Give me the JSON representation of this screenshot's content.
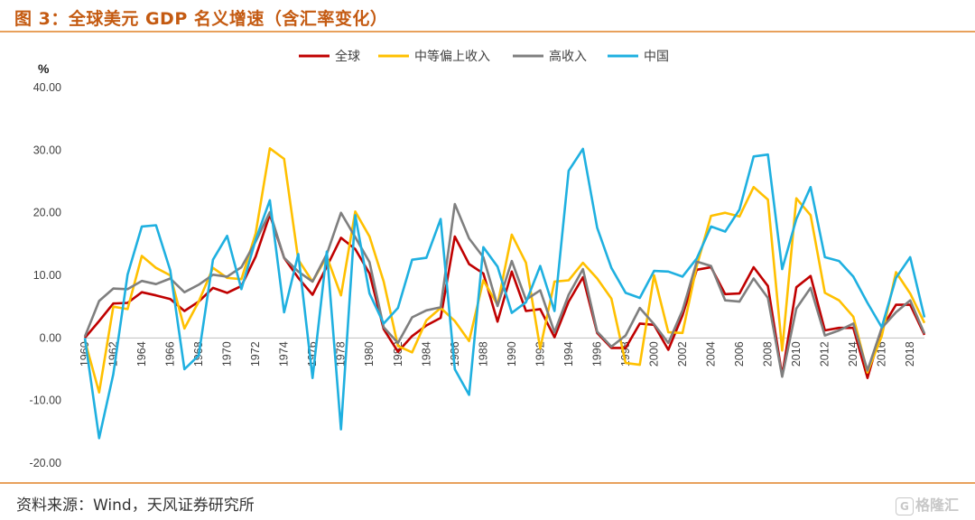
{
  "header": {
    "title": "图 3：全球美元 GDP 名义增速（含汇率变化）"
  },
  "footer": {
    "source": "资料来源：Wind，天风证券研究所",
    "watermark": "格隆汇",
    "watermark_mark": "G"
  },
  "chart_data": {
    "type": "line",
    "title": "",
    "ylabel": "%",
    "xlabel": "",
    "ylim": [
      -20,
      40
    ],
    "yticks": [
      "40.00",
      "30.00",
      "20.00",
      "10.00",
      "0.00",
      "-10.00",
      "-20.00"
    ],
    "ytick_values": [
      40,
      30,
      20,
      10,
      0,
      -10,
      -20
    ],
    "x": [
      1960,
      1961,
      1962,
      1963,
      1964,
      1965,
      1966,
      1967,
      1968,
      1969,
      1970,
      1971,
      1972,
      1973,
      1974,
      1975,
      1976,
      1977,
      1978,
      1979,
      1980,
      1981,
      1982,
      1983,
      1984,
      1985,
      1986,
      1987,
      1988,
      1989,
      1990,
      1991,
      1992,
      1993,
      1994,
      1995,
      1996,
      1997,
      1998,
      1999,
      2000,
      2001,
      2002,
      2003,
      2004,
      2005,
      2006,
      2007,
      2008,
      2009,
      2010,
      2011,
      2012,
      2013,
      2014,
      2015,
      2016,
      2017,
      2018,
      2019
    ],
    "xticks": [
      "1960",
      "1962",
      "1964",
      "1966",
      "1968",
      "1970",
      "1972",
      "1974",
      "1976",
      "1978",
      "1980",
      "1982",
      "1984",
      "1986",
      "1988",
      "1990",
      "1992",
      "1994",
      "1996",
      "1998",
      "2000",
      "2002",
      "2004",
      "2006",
      "2008",
      "2010",
      "2012",
      "2014",
      "2016",
      "2018"
    ],
    "series": [
      {
        "name": "全球",
        "color": "#c00000",
        "values": [
          0,
          2.7,
          5.5,
          5.6,
          7.3,
          6.8,
          6.2,
          4.3,
          5.8,
          8.0,
          7.2,
          8.3,
          13.0,
          19.7,
          12.8,
          9.6,
          6.9,
          11.4,
          16.0,
          14.2,
          10.3,
          1.4,
          -2.2,
          0.3,
          2.0,
          3.2,
          16.2,
          11.8,
          10.3,
          2.6,
          10.6,
          4.3,
          4.6,
          0.1,
          5.8,
          9.7,
          0.8,
          -1.6,
          -1.6,
          2.3,
          2.1,
          -1.9,
          3.6,
          10.9,
          11.3,
          7.0,
          7.1,
          11.3,
          8.3,
          -6.0,
          8.1,
          9.9,
          1.2,
          1.6,
          1.6,
          -6.4,
          1.5,
          5.3,
          5.3,
          0.5
        ]
      },
      {
        "name": "中等偏上收入",
        "color": "#ffc000",
        "values": [
          -0.4,
          -8.7,
          5.0,
          4.6,
          13.1,
          11.2,
          10.0,
          1.5,
          5.8,
          11.2,
          9.6,
          9.4,
          16.7,
          30.3,
          28.6,
          12.5,
          9.0,
          13.0,
          6.8,
          20.2,
          16.2,
          9.0,
          -1.3,
          -2.3,
          2.8,
          4.8,
          2.7,
          -0.5,
          9.2,
          5.3,
          16.5,
          12.0,
          -1.7,
          9.0,
          9.2,
          12.0,
          9.5,
          6.3,
          -4.0,
          -4.3,
          10.0,
          0.9,
          0.8,
          11.5,
          19.5,
          20.0,
          19.4,
          24.1,
          22.1,
          -2.0,
          22.3,
          19.6,
          7.2,
          6.0,
          3.4,
          -5.5,
          0.3,
          10.5,
          7.1,
          2.4
        ]
      },
      {
        "name": "高收入",
        "color": "#7f7f7f",
        "values": [
          0.2,
          5.9,
          7.9,
          7.8,
          9.1,
          8.6,
          9.5,
          7.3,
          8.5,
          10.1,
          9.8,
          11.3,
          15.4,
          20.1,
          12.8,
          10.6,
          9.0,
          13.4,
          20.0,
          16.1,
          12.1,
          1.7,
          -0.8,
          3.3,
          4.4,
          4.9,
          21.4,
          15.9,
          12.9,
          5.1,
          12.3,
          6.1,
          7.6,
          0.9,
          6.9,
          11.0,
          1.0,
          -1.4,
          0.4,
          4.8,
          2.2,
          -0.8,
          4.4,
          12.2,
          11.5,
          6.0,
          5.8,
          9.5,
          6.4,
          -6.2,
          4.7,
          8.0,
          0.4,
          1.2,
          2.3,
          -5.2,
          1.6,
          4.1,
          6.0,
          0.7
        ]
      },
      {
        "name": "中国",
        "color": "#1fb0e0",
        "values": [
          0.0,
          -16.0,
          -5.8,
          10.1,
          17.8,
          18.0,
          10.8,
          -5.0,
          -2.8,
          12.5,
          16.3,
          7.8,
          15.7,
          22.0,
          4.1,
          13.4,
          -6.4,
          13.8,
          -14.6,
          19.6,
          7.1,
          2.3,
          4.8,
          12.5,
          12.8,
          19.0,
          -5.0,
          -9.1,
          14.5,
          11.4,
          4.0,
          5.7,
          11.5,
          4.3,
          26.7,
          30.2,
          17.6,
          11.2,
          7.2,
          6.4,
          10.7,
          10.6,
          9.8,
          12.7,
          17.8,
          17.0,
          20.5,
          29.0,
          29.3,
          11.0,
          19.0,
          24.1,
          12.9,
          12.3,
          9.8,
          5.6,
          1.7,
          9.6,
          12.9,
          3.3
        ]
      }
    ]
  }
}
